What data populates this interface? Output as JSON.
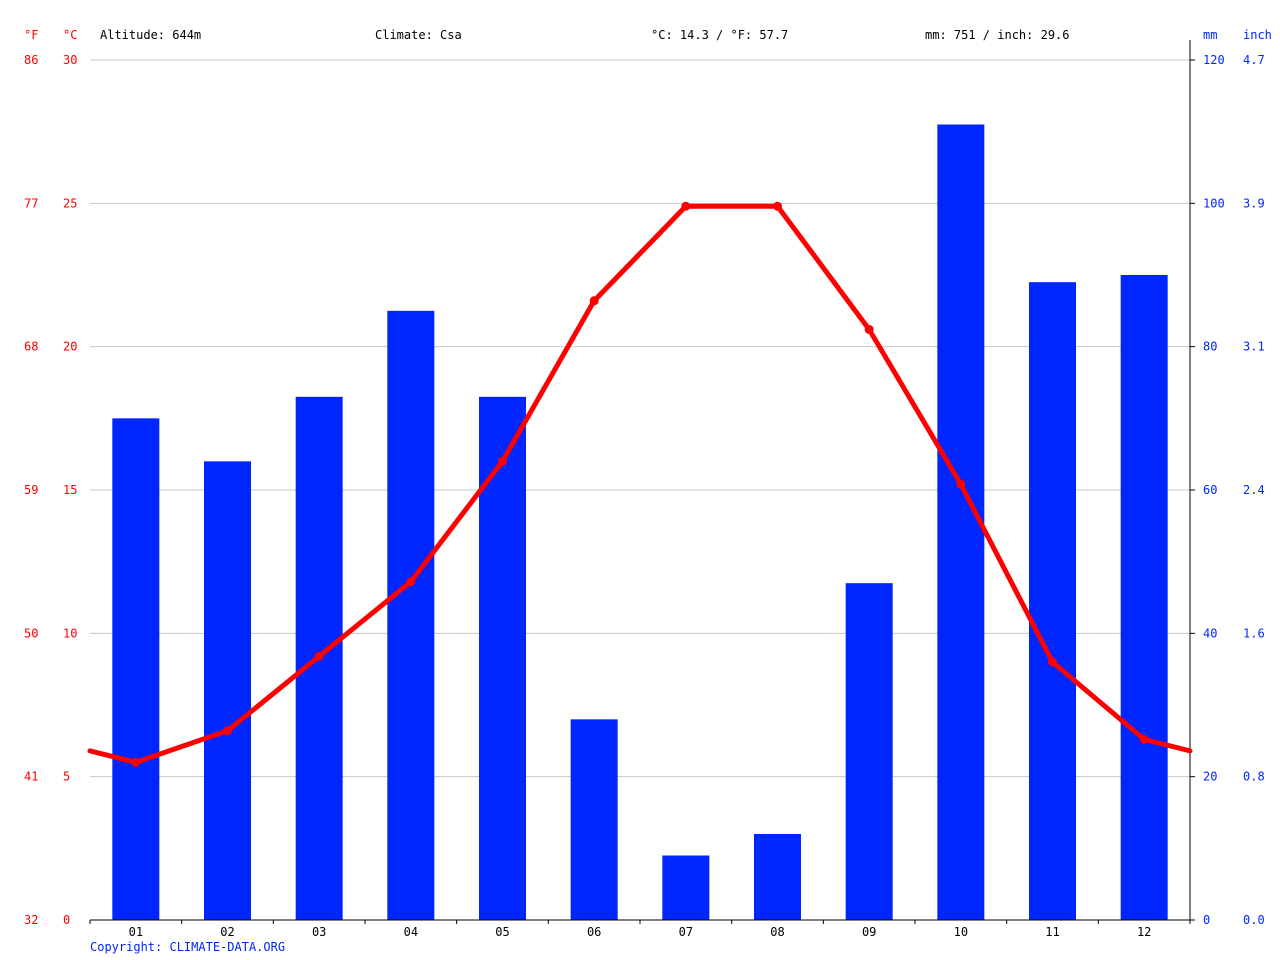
{
  "header": {
    "unit_f": "°F",
    "unit_c": "°C",
    "altitude": "Altitude: 644m",
    "climate": "Climate: Csa",
    "temp_avg": "°C: 14.3 / °F: 57.7",
    "precip_total": "mm: 751 / inch: 29.6",
    "unit_mm": "mm",
    "unit_inch": "inch"
  },
  "copyright": "Copyright: CLIMATE-DATA.ORG",
  "colors": {
    "temperature": "#ff0000",
    "precipitation": "#0026ff",
    "grid": "#c8c8c8",
    "axis": "#000000"
  },
  "chart_data": {
    "type": "bar",
    "categories": [
      "01",
      "02",
      "03",
      "04",
      "05",
      "06",
      "07",
      "08",
      "09",
      "10",
      "11",
      "12"
    ],
    "precipitation_mm": [
      70,
      64,
      73,
      85,
      73,
      28,
      9,
      12,
      47,
      111,
      89,
      90
    ],
    "temperature_c": [
      5.5,
      6.6,
      9.2,
      11.8,
      16.0,
      21.6,
      24.9,
      24.9,
      20.6,
      15.2,
      9.0,
      6.3
    ],
    "temperature_line_start_c": 5.9,
    "temperature_line_end_c": 5.9,
    "axes": {
      "celsius": {
        "ylim": [
          0,
          30
        ],
        "ticks": [
          "0",
          "5",
          "10",
          "15",
          "20",
          "25",
          "30"
        ]
      },
      "fahrenheit": {
        "ticks": [
          "32",
          "41",
          "50",
          "59",
          "68",
          "77",
          "86"
        ]
      },
      "mm": {
        "ylim": [
          0,
          120
        ],
        "ticks": [
          "0",
          "20",
          "40",
          "60",
          "80",
          "100",
          "120"
        ]
      },
      "inch": {
        "ticks": [
          "0.0",
          "0.8",
          "1.6",
          "2.4",
          "3.1",
          "3.9",
          "4.7"
        ]
      }
    },
    "grid": true
  }
}
